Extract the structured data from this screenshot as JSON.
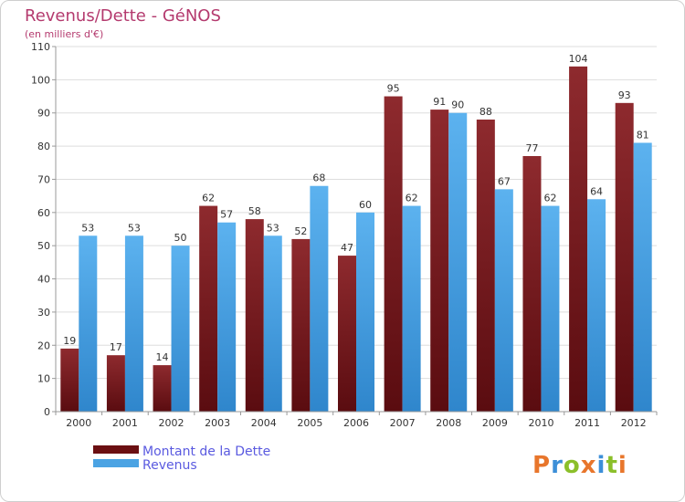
{
  "chart_data": {
    "type": "bar",
    "title": "Revenus/Dette - GéNOS",
    "subtitle": "(en milliers d'€)",
    "categories": [
      "2000",
      "2001",
      "2002",
      "2003",
      "2004",
      "2005",
      "2006",
      "2007",
      "2008",
      "2009",
      "2010",
      "2011",
      "2012"
    ],
    "series": [
      {
        "name": "Montant de la Dette",
        "color": "#7a1a1e",
        "values": [
          19,
          17,
          14,
          62,
          58,
          52,
          47,
          95,
          91,
          88,
          77,
          104,
          93
        ]
      },
      {
        "name": "Revenus",
        "color": "#4ba3e3",
        "values": [
          53,
          53,
          50,
          57,
          53,
          68,
          60,
          62,
          90,
          67,
          62,
          64,
          81
        ]
      }
    ],
    "ylim": [
      0,
      110
    ],
    "yticks": [
      0,
      10,
      20,
      30,
      40,
      50,
      60,
      70,
      80,
      90,
      100,
      110
    ],
    "grid": true,
    "legend_position": "bottom-left"
  },
  "logo": {
    "text": "Proxiti"
  }
}
